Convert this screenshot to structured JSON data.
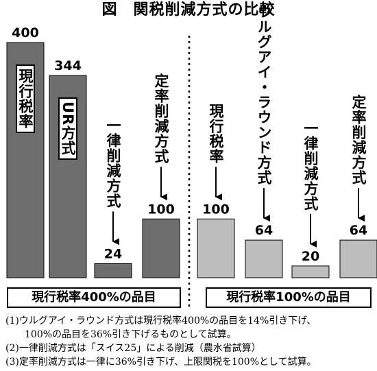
{
  "title": "図　関税削減方式の比較",
  "chart_data": {
    "type": "bar",
    "ylim": [
      0,
      400
    ],
    "groups": [
      {
        "name": "現行税率400%の品目",
        "categories": [
          "現行税率",
          "UR方式",
          "一律削減方式",
          "定率削減方式"
        ],
        "values": [
          400,
          344,
          24,
          100
        ],
        "color": "#6e6e6e"
      },
      {
        "name": "現行税率100%の品目",
        "categories": [
          "現行税率",
          "ウルグアイ・ラウンド方式",
          "一律削減方式",
          "定率削減方式"
        ],
        "values": [
          100,
          64,
          20,
          64
        ],
        "color": "#bdbdbd"
      }
    ]
  },
  "notes": [
    "(1)ウルグアイ・ラウンド方式は現行税率400%の品目を14%引き下げ、",
    "100%の品目を36%引き下げるものとして試算。",
    "(2)一律削減方式は「スイス25」による削減（農水省試算）",
    "(3)定率削減方式は一律に36%引き下げ、上限関税を100%として試算。"
  ]
}
